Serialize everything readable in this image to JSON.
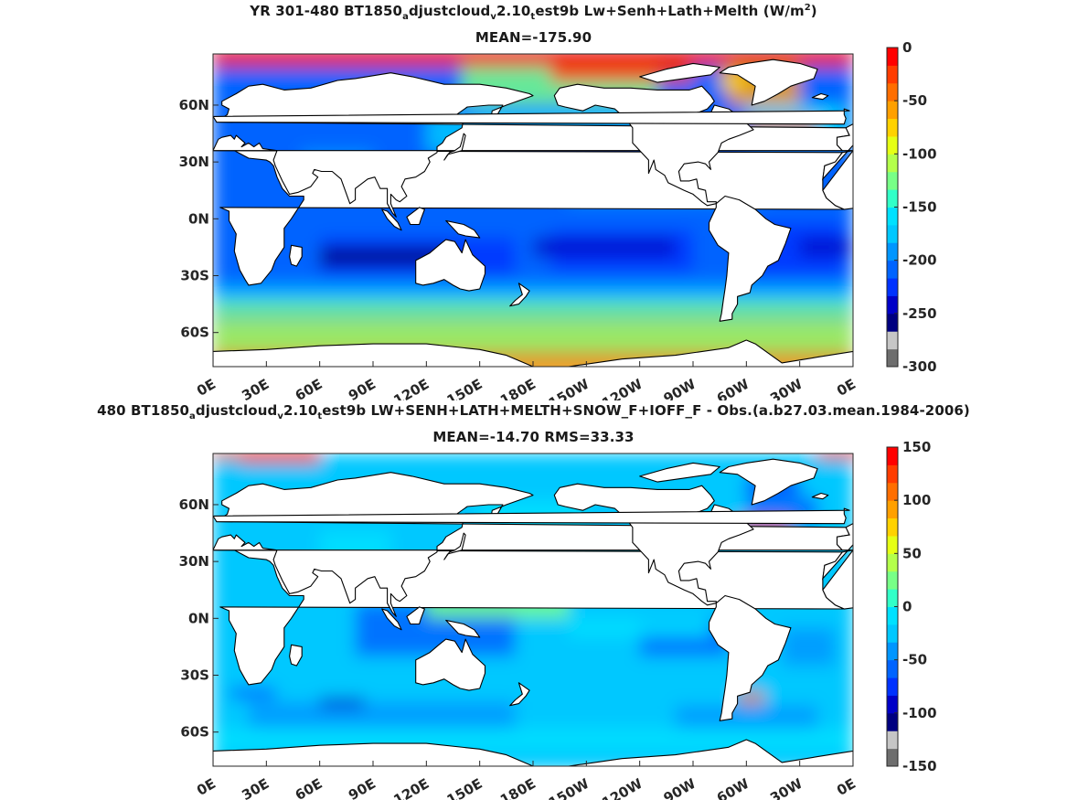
{
  "chart_data": [
    {
      "type": "heatmap",
      "title_html": "YR 301-480 BT1850<sub>a</sub>djustcloud<sub>v</sub>2.10<sub>t</sub>est9b Lw+Senh+Lath+Melth (W/m<sup>2</sup>)",
      "subtitle": "MEAN=-175.90",
      "x_tick_labels": [
        "0E",
        "30E",
        "60E",
        "90E",
        "120E",
        "150E",
        "180E",
        "150W",
        "120W",
        "90W",
        "60W",
        "30W",
        "0E"
      ],
      "y_tick_labels": [
        "60N",
        "30N",
        "0N",
        "30S",
        "60S"
      ],
      "y_tick_values": [
        60,
        30,
        0,
        -30,
        -60
      ],
      "lat_range": [
        -78,
        87
      ],
      "lon_range": [
        0,
        360
      ],
      "colorbar": {
        "range": [
          -300,
          0
        ],
        "ticks": [
          0,
          -50,
          -100,
          -150,
          -200,
          -250,
          -300
        ],
        "tick_labels": [
          "0",
          "-50",
          "-100",
          "-150",
          "-200",
          "-250",
          "-300"
        ],
        "colors": [
          "#6e6e6e",
          "#c6c6c6",
          "#000080",
          "#0000c8",
          "#0032ff",
          "#0064ff",
          "#0096ff",
          "#00c8ff",
          "#00e1ff",
          "#32ffc8",
          "#78ff87",
          "#b4ff4b",
          "#e6ff14",
          "#ffd200",
          "#ffa000",
          "#ff6e00",
          "#ff3c00",
          "#ff0000"
        ]
      }
    },
    {
      "type": "heatmap",
      "title_html": "480 BT1850<sub>a</sub>djustcloud<sub>v</sub>2.10<sub>t</sub>est9b LW+SENH+LATH+MELTH+SNOW_F+IOFF_F - Obs.(a.b27.03.mean.1984-2006)",
      "subtitle": "MEAN=-14.70 RMS=33.33",
      "x_tick_labels": [
        "0E",
        "30E",
        "60E",
        "90E",
        "120E",
        "150E",
        "180E",
        "150W",
        "120W",
        "90W",
        "60W",
        "30W",
        "0E"
      ],
      "y_tick_labels": [
        "60N",
        "30N",
        "0N",
        "30S",
        "60S"
      ],
      "y_tick_values": [
        60,
        30,
        0,
        -30,
        -60
      ],
      "lat_range": [
        -78,
        87
      ],
      "lon_range": [
        0,
        360
      ],
      "colorbar": {
        "range": [
          -150,
          150
        ],
        "ticks": [
          150,
          100,
          50,
          0,
          -50,
          -100,
          -150
        ],
        "tick_labels": [
          "150",
          "100",
          "50",
          "0",
          "-50",
          "-100",
          "-150"
        ],
        "colors": [
          "#6e6e6e",
          "#c6c6c6",
          "#000080",
          "#0000c8",
          "#0032ff",
          "#0064ff",
          "#0096ff",
          "#00c8ff",
          "#00e1ff",
          "#32ffc8",
          "#78ff87",
          "#b4ff4b",
          "#e6ff14",
          "#ffd200",
          "#ffa000",
          "#ff6e00",
          "#ff3c00",
          "#ff0000"
        ]
      }
    }
  ]
}
